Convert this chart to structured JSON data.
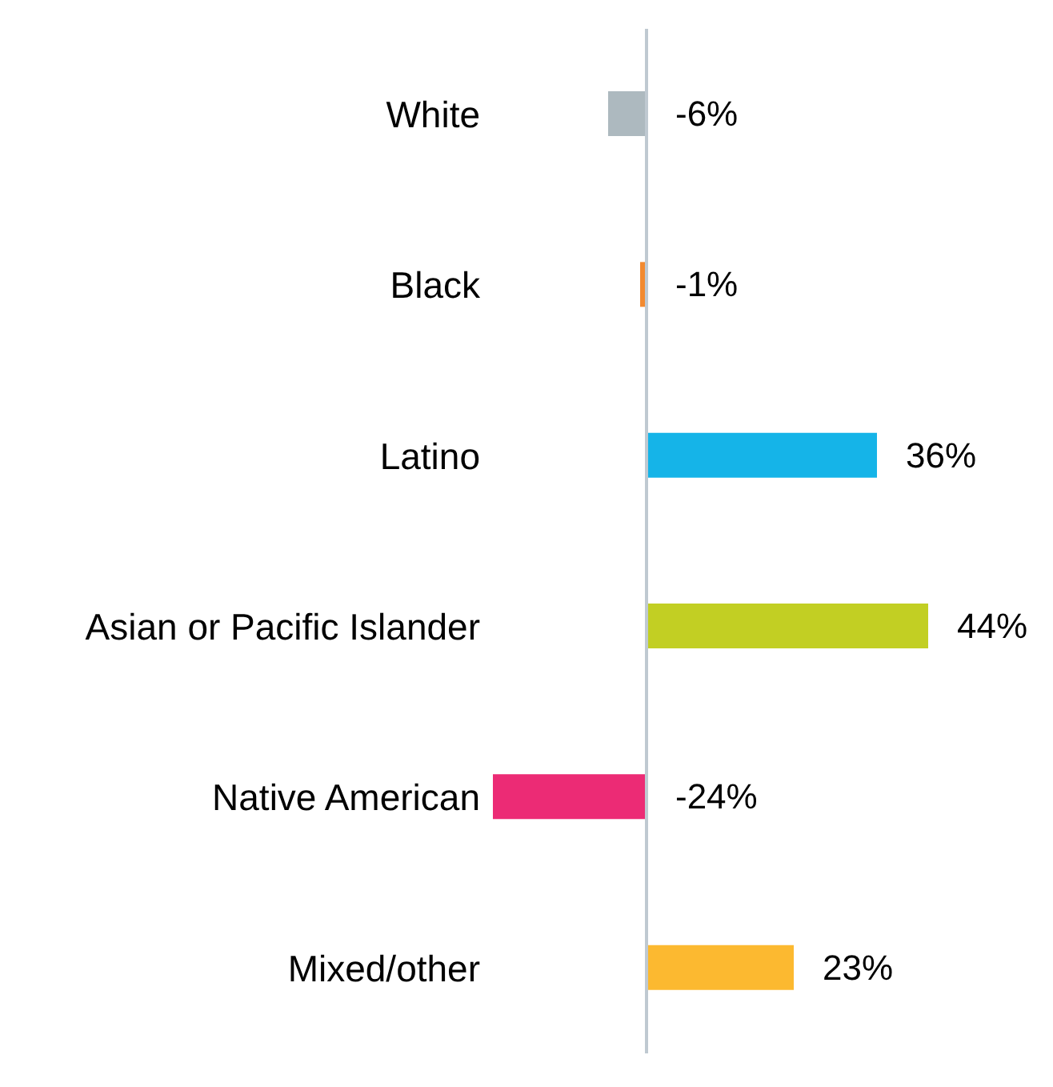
{
  "chart_data": {
    "type": "bar",
    "orientation": "horizontal",
    "categories": [
      "White",
      "Black",
      "Latino",
      "Asian or Pacific Islander",
      "Native American",
      "Mixed/other"
    ],
    "values": [
      -6,
      -1,
      36,
      44,
      -24,
      23
    ],
    "colors": [
      "#adb9bf",
      "#f28a30",
      "#15b4e8",
      "#c2cf23",
      "#ec2b75",
      "#fcb930"
    ],
    "value_labels": [
      "-6%",
      "-1%",
      "36%",
      "44%",
      "-24%",
      "23%"
    ],
    "grid": false,
    "legend": false
  }
}
